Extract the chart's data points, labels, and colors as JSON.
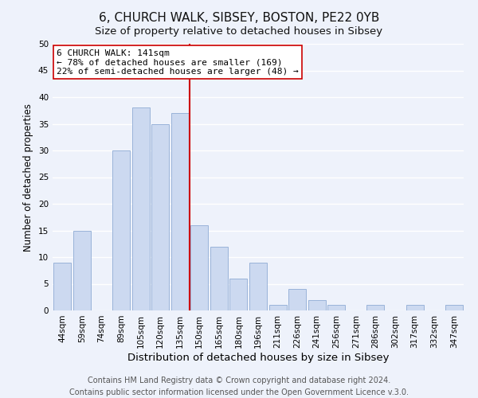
{
  "title": "6, CHURCH WALK, SIBSEY, BOSTON, PE22 0YB",
  "subtitle": "Size of property relative to detached houses in Sibsey",
  "xlabel": "Distribution of detached houses by size in Sibsey",
  "ylabel": "Number of detached properties",
  "bar_labels": [
    "44sqm",
    "59sqm",
    "74sqm",
    "89sqm",
    "105sqm",
    "120sqm",
    "135sqm",
    "150sqm",
    "165sqm",
    "180sqm",
    "196sqm",
    "211sqm",
    "226sqm",
    "241sqm",
    "256sqm",
    "271sqm",
    "286sqm",
    "302sqm",
    "317sqm",
    "332sqm",
    "347sqm"
  ],
  "bar_values": [
    9,
    15,
    0,
    30,
    38,
    35,
    37,
    16,
    12,
    6,
    9,
    1,
    4,
    2,
    1,
    0,
    1,
    0,
    1,
    0,
    1
  ],
  "bar_color": "#ccd9f0",
  "bar_edge_color": "#99b3d9",
  "vline_color": "#cc0000",
  "ylim": [
    0,
    50
  ],
  "yticks": [
    0,
    5,
    10,
    15,
    20,
    25,
    30,
    35,
    40,
    45,
    50
  ],
  "annotation_title": "6 CHURCH WALK: 141sqm",
  "annotation_line1": "← 78% of detached houses are smaller (169)",
  "annotation_line2": "22% of semi-detached houses are larger (48) →",
  "annotation_box_color": "#ffffff",
  "annotation_box_edge": "#cc0000",
  "footer1": "Contains HM Land Registry data © Crown copyright and database right 2024.",
  "footer2": "Contains public sector information licensed under the Open Government Licence v.3.0.",
  "bg_color": "#eef2fb",
  "grid_color": "#d8e0f0",
  "title_fontsize": 11,
  "subtitle_fontsize": 9.5,
  "xlabel_fontsize": 9.5,
  "ylabel_fontsize": 8.5,
  "tick_fontsize": 7.5,
  "annotation_fontsize": 8,
  "footer_fontsize": 7
}
